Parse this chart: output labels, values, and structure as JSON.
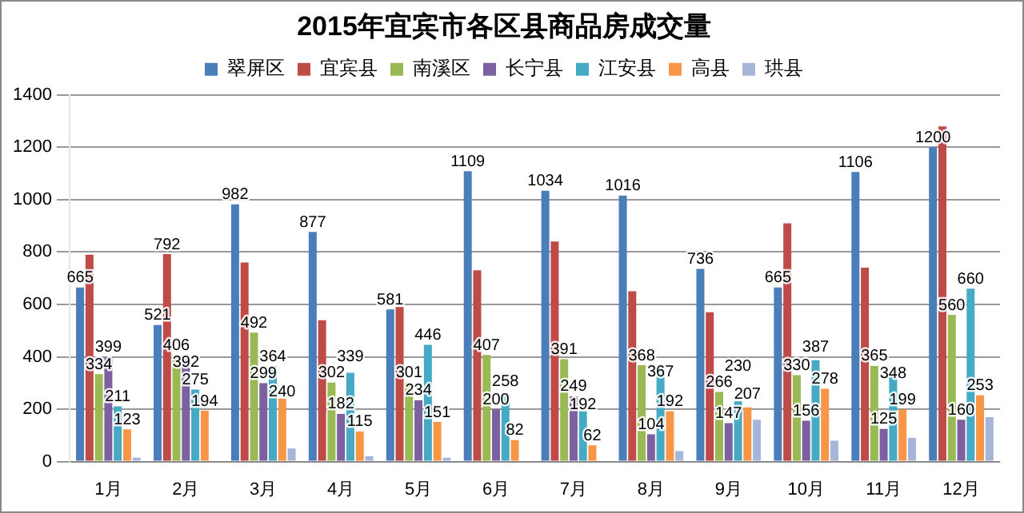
{
  "chart_data": {
    "type": "bar",
    "title": "2015年宜宾市各区县商品房成交量",
    "categories": [
      "1月",
      "2月",
      "3月",
      "4月",
      "5月",
      "6月",
      "7月",
      "8月",
      "9月",
      "10月",
      "11月",
      "12月"
    ],
    "series": [
      {
        "name": "翠屏区",
        "color": "#4a7ebb",
        "values": [
          665,
          521,
          982,
          877,
          581,
          1109,
          1034,
          1016,
          736,
          665,
          1106,
          1200
        ],
        "value_labels": [
          "665",
          "521",
          "982",
          "877",
          "581",
          "1109",
          "1034",
          "1016",
          "736",
          "665",
          "1106",
          "1200"
        ]
      },
      {
        "name": "宜宾县",
        "color": "#be4b48",
        "values": [
          790,
          792,
          760,
          540,
          590,
          730,
          840,
          650,
          570,
          910,
          740,
          1280
        ],
        "value_labels": [
          null,
          "792",
          null,
          null,
          null,
          null,
          null,
          null,
          null,
          null,
          null,
          null
        ]
      },
      {
        "name": "南溪区",
        "color": "#98b954",
        "values": [
          334,
          406,
          492,
          302,
          301,
          407,
          391,
          368,
          266,
          330,
          365,
          560
        ],
        "value_labels": [
          "334",
          "406",
          "492",
          "302",
          "301",
          "407",
          "391",
          "368",
          "266",
          "330",
          "365",
          "560"
        ]
      },
      {
        "name": "长宁县",
        "color": "#7d60a0",
        "values": [
          399,
          392,
          299,
          182,
          234,
          200,
          249,
          104,
          147,
          156,
          125,
          160
        ],
        "value_labels": [
          "399",
          "392",
          "299",
          "182",
          "234",
          "200",
          "249",
          "104",
          "147",
          "156",
          "125",
          "160"
        ]
      },
      {
        "name": "江安县",
        "color": "#46aac5",
        "values": [
          211,
          275,
          364,
          339,
          446,
          258,
          192,
          367,
          230,
          387,
          348,
          660
        ],
        "value_labels": [
          "211",
          "275",
          "364",
          "339",
          "446",
          "258",
          "192",
          "367",
          "230",
          "387",
          "348",
          "660"
        ]
      },
      {
        "name": "高县",
        "color": "#f79646",
        "values": [
          123,
          194,
          240,
          115,
          151,
          82,
          62,
          192,
          207,
          278,
          199,
          253
        ],
        "value_labels": [
          "123",
          "194",
          "240",
          "115",
          "151",
          "82",
          "62",
          "192",
          "207",
          "278",
          "199",
          "253"
        ]
      },
      {
        "name": "珙县",
        "color": "#a5b6d9",
        "values": [
          15,
          0,
          50,
          20,
          15,
          0,
          0,
          40,
          160,
          80,
          90,
          170
        ]
      }
    ],
    "ylim": [
      0,
      1400
    ],
    "yticks": [
      0,
      200,
      400,
      600,
      800,
      1000,
      1200,
      1400
    ],
    "grid": "y",
    "legend": "top"
  }
}
